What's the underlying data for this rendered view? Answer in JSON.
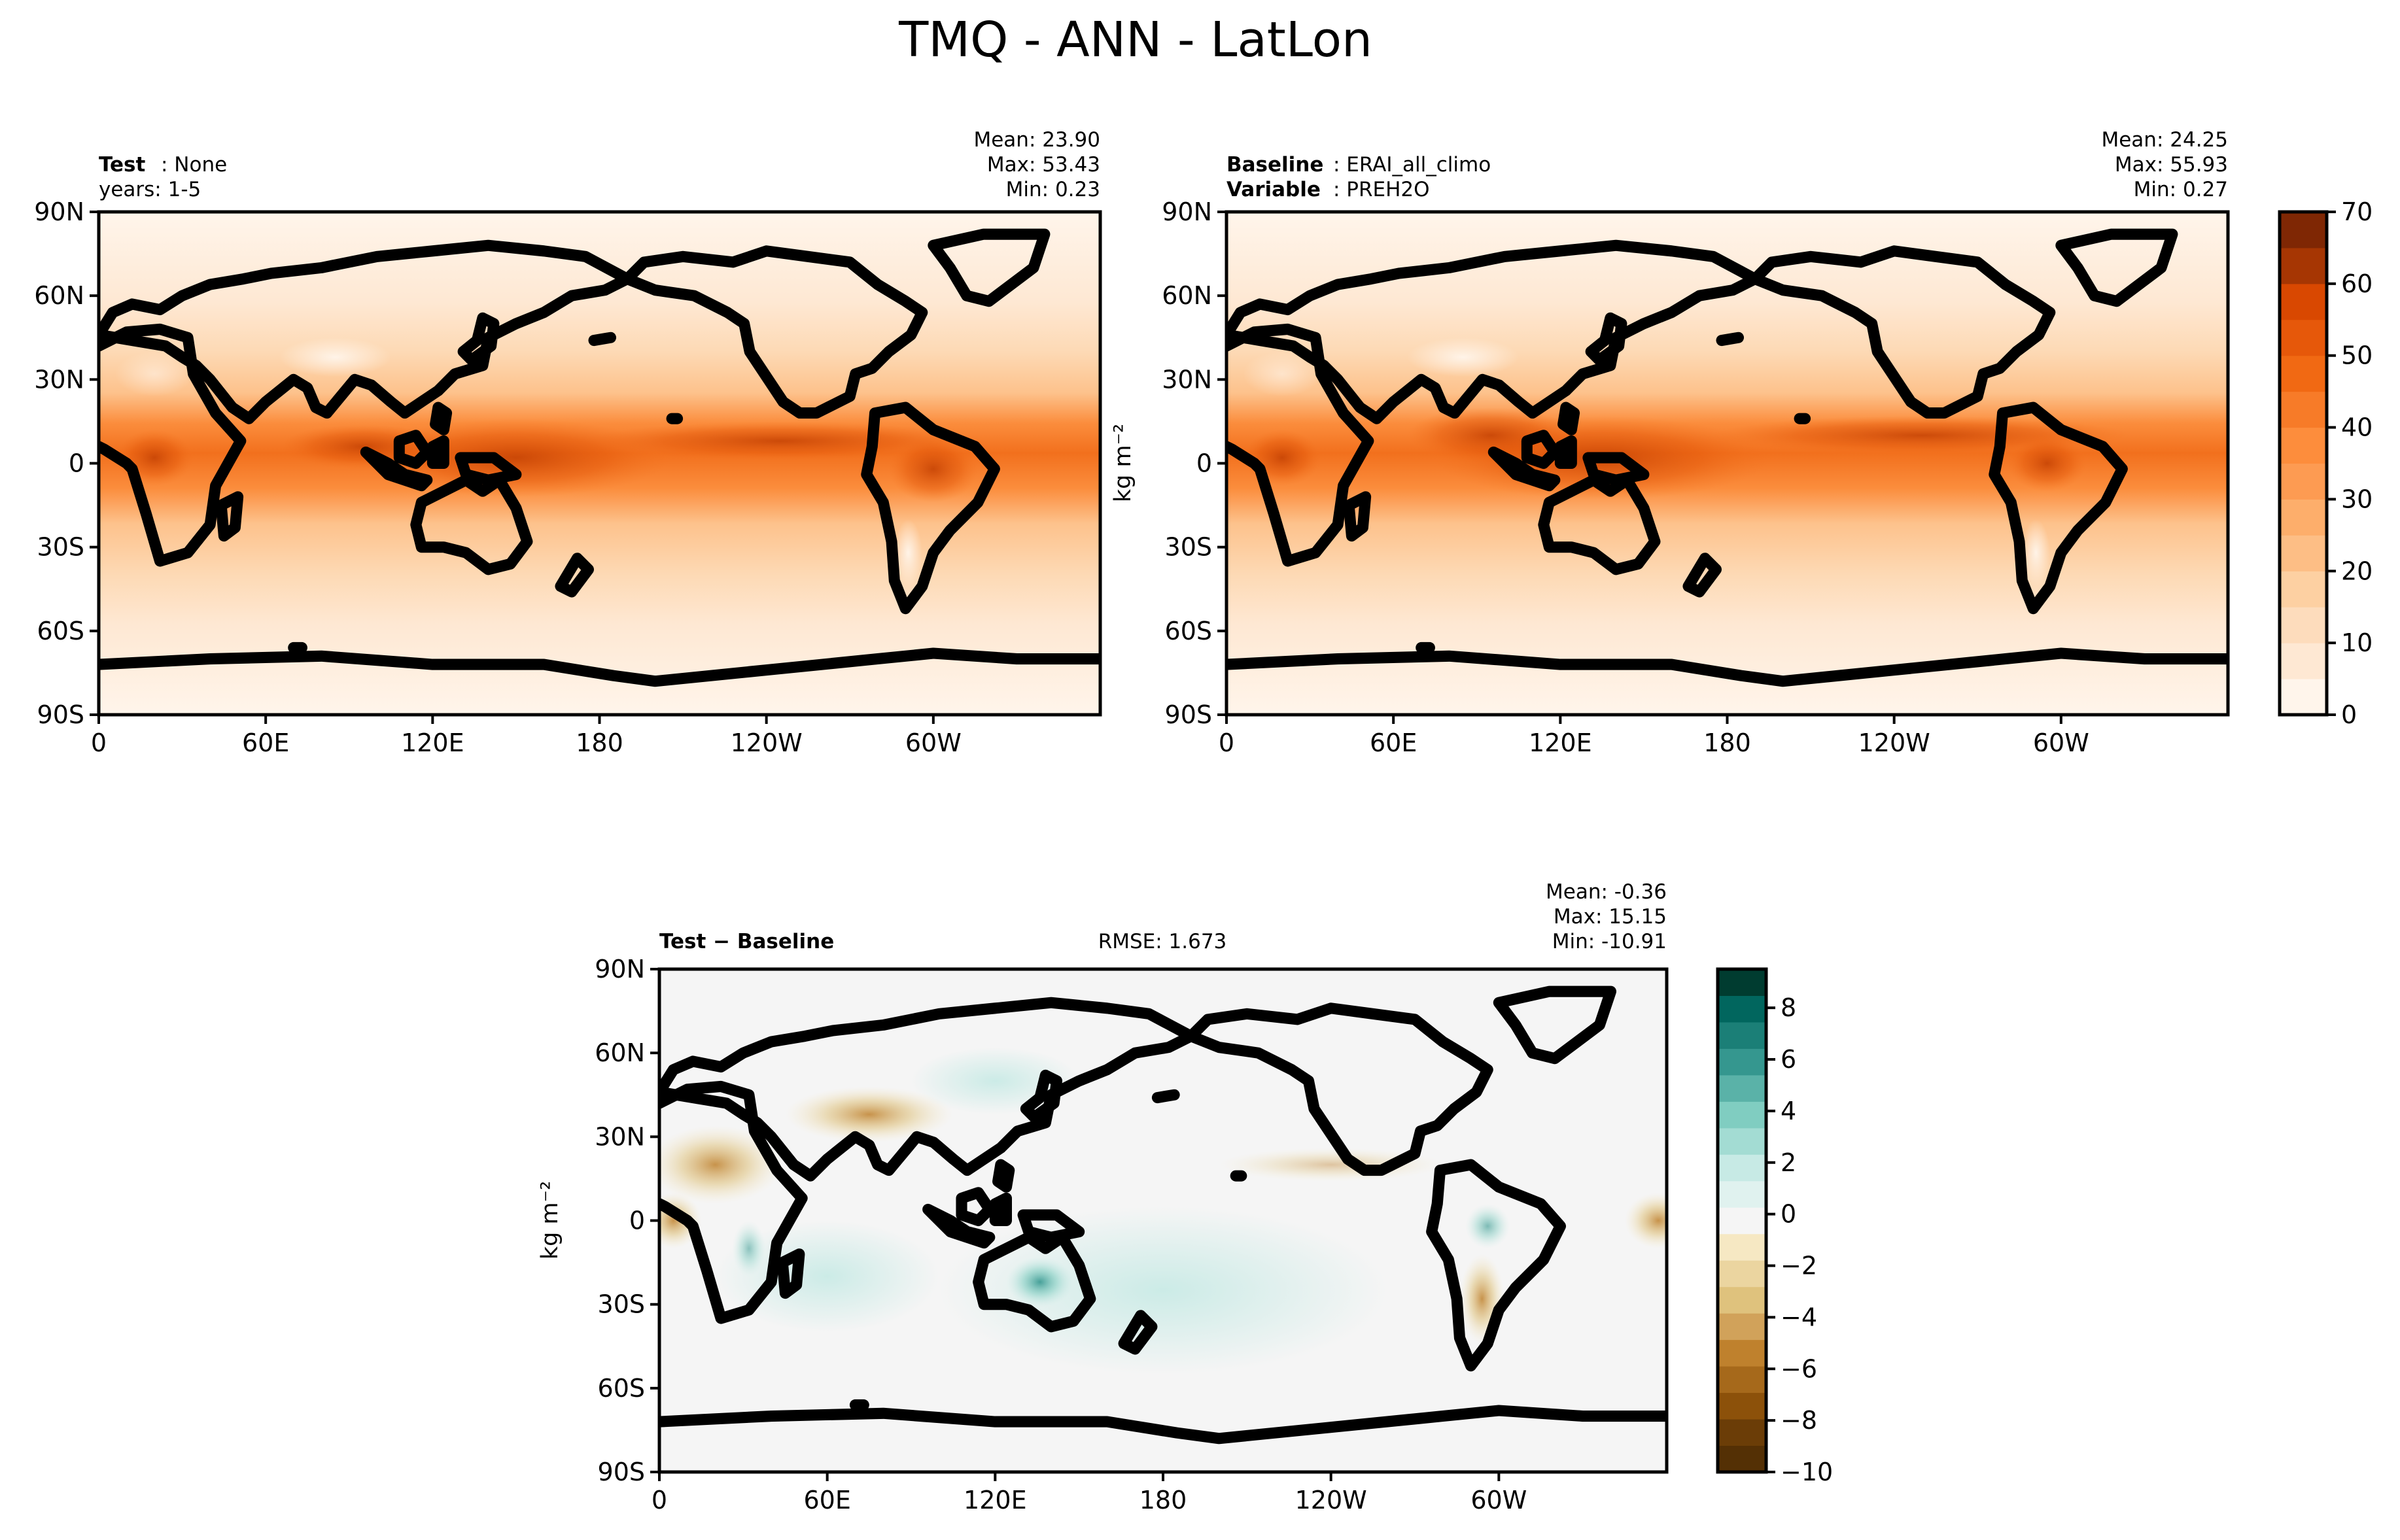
{
  "figure": {
    "title": "TMQ - ANN - LatLon"
  },
  "panels": [
    {
      "id": "test",
      "left_label": "Test",
      "left_value": ": None",
      "left_line2": "years: 1-5",
      "mean": "Mean: 23.90",
      "max": "Max: 53.43",
      "min": "Min:  0.23",
      "ylabel": ""
    },
    {
      "id": "baseline",
      "left_label": "Baseline",
      "left_value": ": ERAI_all_climo",
      "left_label2": "Variable",
      "left_value2": ": PREH2O",
      "mean": "Mean: 24.25",
      "max": "Max: 55.93",
      "min": "Min:  0.27",
      "ylabel": "kg m⁻²"
    },
    {
      "id": "diff",
      "left_label": "Test − Baseline",
      "center": "RMSE: 1.673",
      "mean": "Mean: -0.36",
      "max": "Max: 15.15",
      "min": "Min: -10.91",
      "ylabel": "kg m⁻²"
    }
  ],
  "colors": {
    "seq": [
      "#fff5eb",
      "#fee8d3",
      "#fdd9b4",
      "#fdc28c",
      "#fda762",
      "#fb8d3d",
      "#f2701d",
      "#e25609",
      "#c44103",
      "#9f3303",
      "#7f2704"
    ],
    "div": [
      "#543005",
      "#8c510a",
      "#bf812d",
      "#dfc27d",
      "#f6e8c3",
      "#f5f5f5",
      "#c7eae5",
      "#80cdc1",
      "#35978f",
      "#01665e",
      "#003c30"
    ]
  },
  "chart_data": [
    {
      "type": "heatmap",
      "name": "test",
      "x_ticks": [
        "0",
        "60E",
        "120E",
        "180",
        "120W",
        "60W"
      ],
      "y_ticks": [
        "90N",
        "60N",
        "30N",
        "0",
        "30S",
        "60S",
        "90S"
      ],
      "xlim": [
        0,
        360
      ],
      "ylim": [
        -90,
        90
      ],
      "mean": 23.9,
      "max": 53.43,
      "min": 0.23
    },
    {
      "type": "heatmap",
      "name": "baseline",
      "x_ticks": [
        "0",
        "60E",
        "120E",
        "180",
        "120W",
        "60W"
      ],
      "y_ticks": [
        "90N",
        "60N",
        "30N",
        "0",
        "30S",
        "60S",
        "90S"
      ],
      "xlim": [
        0,
        360
      ],
      "ylim": [
        -90,
        90
      ],
      "mean": 24.25,
      "max": 55.93,
      "min": 0.27,
      "colorbar": {
        "ticks": [
          "0",
          "10",
          "20",
          "30",
          "40",
          "50",
          "60",
          "70"
        ],
        "range": [
          0,
          70
        ]
      }
    },
    {
      "type": "heatmap",
      "name": "difference",
      "x_ticks": [
        "0",
        "60E",
        "120E",
        "180",
        "120W",
        "60W"
      ],
      "y_ticks": [
        "90N",
        "60N",
        "30N",
        "0",
        "30S",
        "60S",
        "90S"
      ],
      "xlim": [
        0,
        360
      ],
      "ylim": [
        -90,
        90
      ],
      "mean": -0.36,
      "max": 15.15,
      "min": -10.91,
      "rmse": 1.673,
      "colorbar": {
        "ticks": [
          "8",
          "6",
          "4",
          "2",
          "0",
          "−2",
          "−4",
          "−6",
          "−8",
          "−10"
        ],
        "range": [
          -10,
          9.5
        ]
      }
    }
  ]
}
